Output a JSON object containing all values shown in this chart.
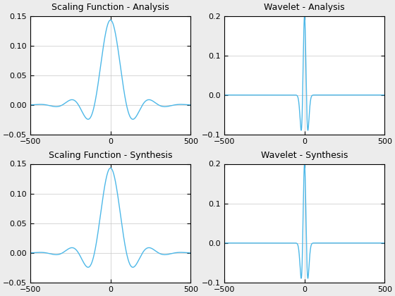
{
  "titles": [
    "Scaling Function - Analysis",
    "Wavelet - Analysis",
    "Scaling Function - Synthesis",
    "Wavelet - Synthesis"
  ],
  "xlim": [
    -500,
    500
  ],
  "ylim_scaling": [
    -0.05,
    0.15
  ],
  "ylim_wavelet": [
    -0.1,
    0.2
  ],
  "line_color": "#4db8e8",
  "line_width": 1.0,
  "yticks_scaling": [
    -0.05,
    0.0,
    0.05,
    0.1,
    0.15
  ],
  "yticks_wavelet": [
    -0.1,
    0.0,
    0.1,
    0.2
  ],
  "xticks": [
    -500,
    0,
    500
  ],
  "grid_color": "#c8c8c8",
  "background_color": "#ffffff",
  "outer_bg": "#ececec",
  "title_fontsize": 9,
  "tick_fontsize": 8,
  "figsize": [
    5.6,
    4.2
  ],
  "dpi": 100,
  "phi_amplitude": 0.143,
  "phi_T": 7.0,
  "psi_amplitude": 0.2,
  "psi_sigma": 5.0
}
